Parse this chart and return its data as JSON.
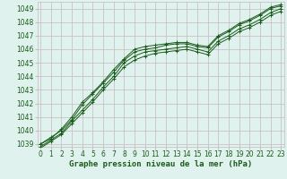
{
  "xlabel": "Graphe pression niveau de la mer (hPa)",
  "ylim": [
    1038.8,
    1049.5
  ],
  "xlim": [
    -0.3,
    23.3
  ],
  "yticks": [
    1039,
    1040,
    1041,
    1042,
    1043,
    1044,
    1045,
    1046,
    1047,
    1048,
    1049
  ],
  "xticks": [
    0,
    1,
    2,
    3,
    4,
    5,
    6,
    7,
    8,
    9,
    10,
    11,
    12,
    13,
    14,
    15,
    16,
    17,
    18,
    19,
    20,
    21,
    22,
    23
  ],
  "bg_color": "#dff2ee",
  "grid_color": "#c8b8c0",
  "line_color": "#1a5c1a",
  "series": [
    [
      1039.0,
      1039.5,
      1040.0,
      1040.8,
      1041.9,
      1042.7,
      1043.5,
      1044.3,
      1045.2,
      1045.8,
      1046.0,
      1046.1,
      1046.3,
      1046.4,
      1046.4,
      1046.2,
      1046.1,
      1046.9,
      1047.3,
      1047.8,
      1048.1,
      1048.5,
      1049.0,
      1049.2
    ],
    [
      1039.0,
      1039.4,
      1040.1,
      1041.0,
      1042.1,
      1042.8,
      1043.6,
      1044.5,
      1045.3,
      1046.0,
      1046.2,
      1046.3,
      1046.4,
      1046.5,
      1046.5,
      1046.3,
      1046.2,
      1047.0,
      1047.4,
      1047.9,
      1048.2,
      1048.6,
      1049.1,
      1049.3
    ],
    [
      1038.8,
      1039.3,
      1039.8,
      1040.7,
      1041.5,
      1042.3,
      1043.2,
      1044.0,
      1045.0,
      1045.5,
      1045.8,
      1045.9,
      1046.0,
      1046.1,
      1046.2,
      1046.0,
      1045.8,
      1046.6,
      1047.0,
      1047.5,
      1047.8,
      1048.2,
      1048.7,
      1049.0
    ],
    [
      1038.7,
      1039.2,
      1039.7,
      1040.5,
      1041.3,
      1042.1,
      1043.0,
      1043.8,
      1044.7,
      1045.2,
      1045.5,
      1045.7,
      1045.8,
      1045.9,
      1046.0,
      1045.8,
      1045.6,
      1046.4,
      1046.8,
      1047.3,
      1047.6,
      1048.0,
      1048.5,
      1048.8
    ]
  ],
  "fontsize_ticks": 5.5,
  "fontsize_xlabel": 6.5,
  "tick_color": "#1a5c1a"
}
